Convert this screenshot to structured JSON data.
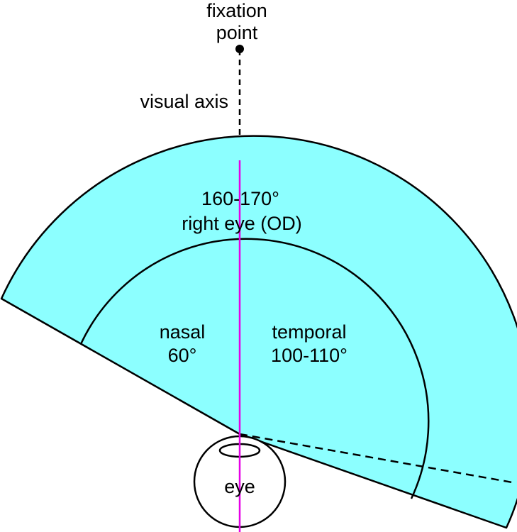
{
  "fixation_point": {
    "line1": "fixation",
    "line2": "point"
  },
  "visual_axis_label": "visual axis",
  "outer_region": {
    "line1": "160-170°",
    "line2": "right eye (OD)"
  },
  "nasal_region": {
    "line1": "nasal",
    "line2": "60°"
  },
  "temporal_region": {
    "line1": "temporal",
    "line2": "100-110°"
  },
  "eye_label": "eye",
  "colors": {
    "field_fill": "#8cffff",
    "axis_line": "#e600e6",
    "outline": "#000000"
  }
}
